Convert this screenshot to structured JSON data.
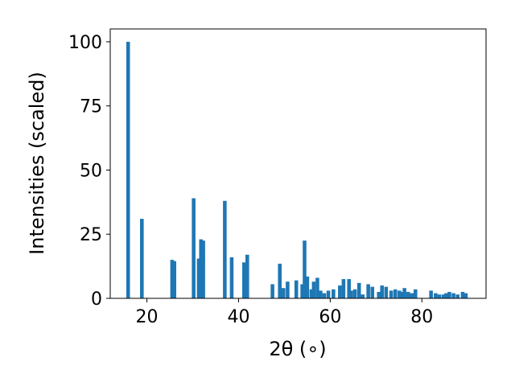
{
  "chart_data": {
    "type": "bar",
    "title": "",
    "xlabel": "2θ (∘)",
    "ylabel": "Intensities (scaled)",
    "xlim": [
      12,
      94
    ],
    "ylim": [
      0,
      105
    ],
    "xticks": [
      20,
      40,
      60,
      80
    ],
    "yticks": [
      0,
      25,
      50,
      75,
      100
    ],
    "xtick_labels": [
      "20",
      "40",
      "60",
      "80"
    ],
    "ytick_labels": [
      "0",
      "25",
      "50",
      "75",
      "100"
    ],
    "grid": false,
    "bar_width": 0.8,
    "bar_color": "#1f77b4",
    "x": [
      15.9,
      18.9,
      25.5,
      26.0,
      30.2,
      31.3,
      31.8,
      32.3,
      37.0,
      38.5,
      41.2,
      41.6,
      41.9,
      47.4,
      49.0,
      49.8,
      50.7,
      52.6,
      53.9,
      54.4,
      55.0,
      55.9,
      56.4,
      57.2,
      57.9,
      58.7,
      59.6,
      60.7,
      62.1,
      62.9,
      64.1,
      64.6,
      65.4,
      66.3,
      67.1,
      68.3,
      69.2,
      70.6,
      71.3,
      72.2,
      73.3,
      74.2,
      75.1,
      75.8,
      76.2,
      77.0,
      77.8,
      78.6,
      82.0,
      83.0,
      83.8,
      84.7,
      85.3,
      86.0,
      86.9,
      87.8,
      88.9,
      89.6
    ],
    "values": [
      100,
      31,
      15,
      14.5,
      39,
      15.5,
      23,
      22.5,
      38,
      16,
      14,
      8,
      17,
      5.5,
      13.5,
      4,
      6.5,
      7,
      5.5,
      22.5,
      8.5,
      3.5,
      6.5,
      8,
      3,
      2,
      3,
      3.5,
      5,
      7.5,
      7.5,
      3,
      3.5,
      6,
      1.5,
      5.5,
      4.5,
      2.5,
      5,
      4.5,
      3,
      3.5,
      3,
      2.5,
      4,
      2.5,
      2,
      3.5,
      3,
      2,
      1.5,
      1.5,
      2,
      2.5,
      2,
      1.5,
      2.5,
      2
    ]
  }
}
